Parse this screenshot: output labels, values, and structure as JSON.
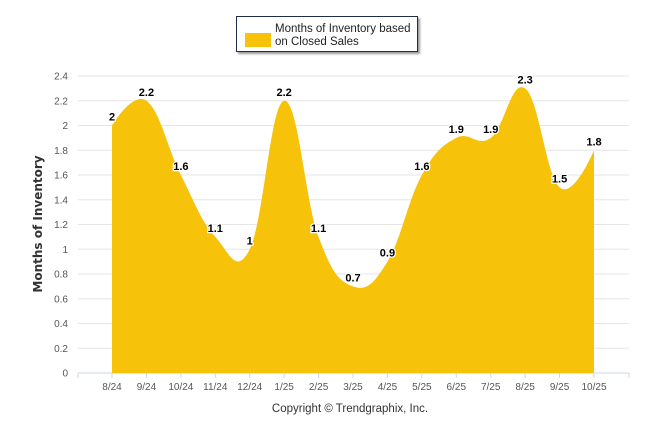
{
  "chart_data": {
    "type": "area",
    "title": "",
    "legend": {
      "label": "Months of Inventory based on Closed Sales",
      "placement": "top-center"
    },
    "categories": [
      "8/24",
      "9/24",
      "10/24",
      "11/24",
      "12/24",
      "1/25",
      "2/25",
      "3/25",
      "4/25",
      "5/25",
      "6/25",
      "7/25",
      "8/25",
      "9/25",
      "10/25"
    ],
    "series": [
      {
        "name": "Months of Inventory based on Closed Sales",
        "values": [
          2,
          2.2,
          1.6,
          1.1,
          1,
          2.2,
          1.1,
          0.7,
          0.9,
          1.6,
          1.9,
          1.9,
          2.3,
          1.5,
          1.8
        ],
        "color": "#f7c30a"
      }
    ],
    "ylabel": "Months of Inventory",
    "xlabel": "",
    "ylim": [
      0,
      2.4
    ],
    "yticks": [
      "0",
      "0.2",
      "0.4",
      "0.6",
      "0.8",
      "1",
      "1.2",
      "1.4",
      "1.6",
      "1.8",
      "2",
      "2.2",
      "2.4"
    ],
    "grid": true,
    "credit": "Copyright © Trendgraphix, Inc."
  }
}
